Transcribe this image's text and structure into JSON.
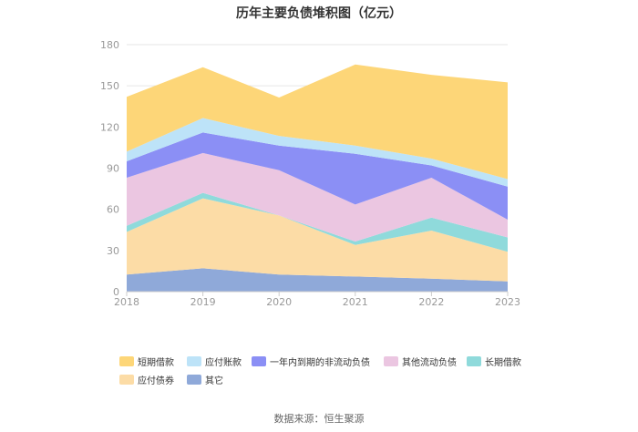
{
  "chart_data": {
    "type": "area",
    "stacked": true,
    "title": "历年主要负债堆积图（亿元）",
    "x": [
      "2018",
      "2019",
      "2020",
      "2021",
      "2022",
      "2023"
    ],
    "y_ticks": [
      "0",
      "30",
      "60",
      "90",
      "120",
      "150",
      "180"
    ],
    "ylim": [
      0,
      180
    ],
    "grid": true,
    "legend_position": "bottom",
    "series": [
      {
        "name": "其它",
        "color": "#8fa9d9",
        "values": [
          12.5,
          17,
          12.5,
          11,
          9.5,
          7.5
        ]
      },
      {
        "name": "应付债券",
        "color": "#fcdca6",
        "values": [
          31,
          51,
          43,
          23,
          35,
          21.5
        ]
      },
      {
        "name": "长期借款",
        "color": "#8fdadb",
        "values": [
          4.5,
          4,
          0,
          2.5,
          9.5,
          10.5
        ]
      },
      {
        "name": "其他流动负债",
        "color": "#ebc6e1",
        "values": [
          35,
          29,
          33,
          27,
          29,
          13
        ]
      },
      {
        "name": "一年内到期的非流动负债",
        "color": "#8b8ff5",
        "values": [
          12,
          15,
          18,
          37,
          9,
          24
        ]
      },
      {
        "name": "应付账款",
        "color": "#bde3f8",
        "values": [
          7,
          10.5,
          7,
          6,
          5,
          5.5
        ]
      },
      {
        "name": "短期借款",
        "color": "#fdd678",
        "values": [
          40,
          37,
          28,
          59,
          61,
          70.5
        ]
      }
    ],
    "legend_order": [
      "短期借款",
      "应付账款",
      "一年内到期的非流动负债",
      "其他流动负债",
      "长期借款",
      "应付债券",
      "其它"
    ]
  },
  "footer": {
    "source": "数据来源：恒生聚源"
  }
}
